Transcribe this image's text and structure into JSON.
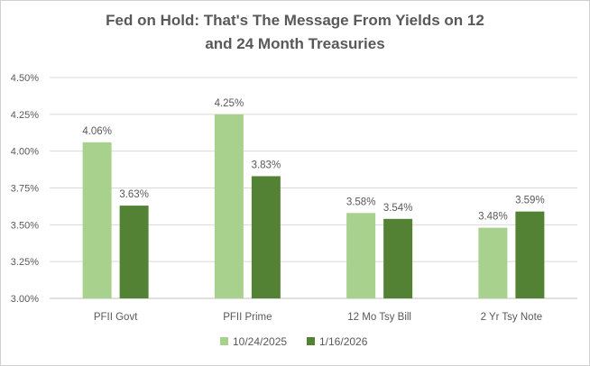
{
  "chart_data": {
    "type": "bar",
    "title_line1": "Fed on Hold:  That's The Message From Yields on 12",
    "title_line2": "and 24 Month Treasuries",
    "categories": [
      "PFII Govt",
      "PFII Prime",
      "12 Mo Tsy  Bill",
      "2 Yr Tsy Note"
    ],
    "series": [
      {
        "name": "10/24/2025",
        "color": "#a9d18e",
        "values": [
          4.06,
          4.25,
          3.58,
          3.48
        ],
        "labels": [
          "4.06%",
          "4.25%",
          "3.58%",
          "3.48%"
        ]
      },
      {
        "name": "1/16/2026",
        "color": "#548235",
        "values": [
          3.63,
          3.83,
          3.54,
          3.59
        ],
        "labels": [
          "3.63%",
          "3.83%",
          "3.54%",
          "3.59%"
        ]
      }
    ],
    "ylim": [
      3.0,
      4.5
    ],
    "yticks": [
      3.0,
      3.25,
      3.5,
      3.75,
      4.0,
      4.25,
      4.5
    ],
    "ytick_labels": [
      "3.00%",
      "3.25%",
      "3.50%",
      "3.75%",
      "4.00%",
      "4.25%",
      "4.50%"
    ],
    "grid": true,
    "gridline_color": "#d9d9d9",
    "legend_position": "bottom"
  }
}
